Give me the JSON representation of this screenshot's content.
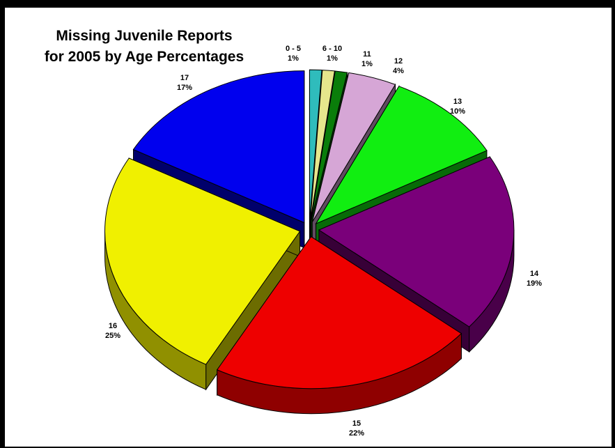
{
  "chart_data": {
    "type": "pie",
    "title_line1": "Missing Juvenile Reports",
    "title_line2": "for 2005 by Age Percentages",
    "slices": [
      {
        "label": "0 - 5",
        "value": 1,
        "value_text": "1%",
        "color": "#2fbcbc"
      },
      {
        "label": "6 - 10",
        "value": 1,
        "value_text": "1%",
        "color": "#e6e68c"
      },
      {
        "label": "11",
        "value": 1,
        "value_text": "1%",
        "color": "#0a7d0a"
      },
      {
        "label": "12",
        "value": 4,
        "value_text": "4%",
        "color": "#d6a6d6"
      },
      {
        "label": "13",
        "value": 10,
        "value_text": "10%",
        "color": "#11ee11"
      },
      {
        "label": "14",
        "value": 19,
        "value_text": "19%",
        "color": "#7a007a"
      },
      {
        "label": "15",
        "value": 22,
        "value_text": "22%",
        "color": "#ee0000"
      },
      {
        "label": "16",
        "value": 25,
        "value_text": "25%",
        "color": "#f0f000"
      },
      {
        "label": "17",
        "value": 17,
        "value_text": "17%",
        "color": "#0000ee"
      }
    ]
  }
}
